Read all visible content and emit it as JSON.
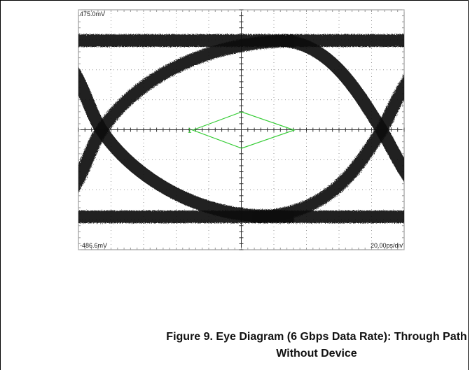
{
  "scope": {
    "top_label": "475.0mV",
    "bottom_label": "-486.6mV",
    "timebase": "20.00ps/div",
    "marker": "1"
  },
  "caption": {
    "line1": "Figure 9. Eye Diagram (6 Gbps Data Rate): Through Path",
    "line2": "Without Device"
  }
}
